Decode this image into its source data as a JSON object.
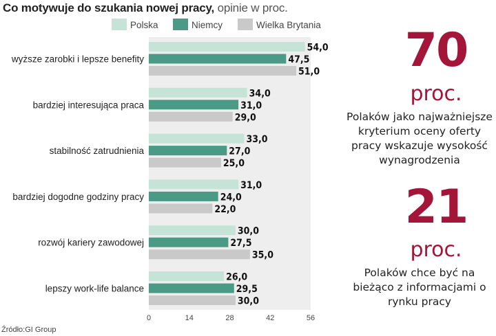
{
  "title": {
    "bold": "Co motywuje do szukania nowej pracy,",
    "light": " opinie w proc."
  },
  "source": "Źródło:GI Group",
  "colors": {
    "Polska": "#c6e3d8",
    "Niemcy": "#4a9a86",
    "Wielka Brytania": "#c9c9c9",
    "accent": "#a3163a"
  },
  "chart_data": {
    "type": "bar",
    "orientation": "horizontal",
    "categories": [
      "wyższe zarobki i lepsze benefity",
      "bardziej interesująca praca",
      "stabilność zatrudnienia",
      "bardziej dogodne godziny pracy",
      "rozwój kariery zawodowej",
      "lepszy work-life balance"
    ],
    "series": [
      {
        "name": "Polska",
        "values": [
          54.0,
          34.0,
          33.0,
          31.0,
          30.0,
          26.0
        ]
      },
      {
        "name": "Niemcy",
        "values": [
          47.5,
          31.0,
          27.0,
          24.0,
          27.5,
          29.5
        ]
      },
      {
        "name": "Wielka Brytania",
        "values": [
          51.0,
          29.0,
          25.0,
          22.0,
          35.0,
          30.0
        ]
      }
    ],
    "value_labels": [
      [
        "54,0",
        "47,5",
        "51,0"
      ],
      [
        "34,0",
        "31,0",
        "29,0"
      ],
      [
        "33,0",
        "27,0",
        "25,0"
      ],
      [
        "31,0",
        "24,0",
        "22,0"
      ],
      [
        "30,0",
        "27,5",
        "35,0"
      ],
      [
        "26,0",
        "29,5",
        "30,0"
      ]
    ],
    "xlim": [
      0,
      56
    ],
    "xticks": [
      0,
      14,
      28,
      42,
      56
    ],
    "legend_position": "top"
  },
  "stats": [
    {
      "number": "70",
      "unit": "proc.",
      "text": "Polaków jako najważniejsze kryterium oceny oferty pracy wskazuje wysokość wynagrodzenia"
    },
    {
      "number": "21",
      "unit": "proc.",
      "text": "Polaków chce być na bieżąco z informacjami o rynku pracy"
    }
  ]
}
